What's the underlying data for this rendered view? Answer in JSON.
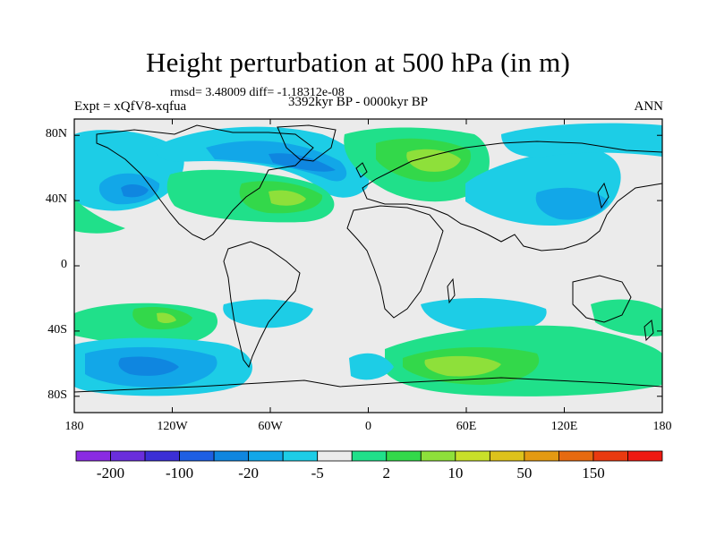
{
  "header": {
    "title": "Height perturbation at 500 hPa (in m)",
    "stats": "rmsd= 3.48009 diff= -1.18312e-08",
    "left_label": "Expt = xQfV8-xqfua",
    "center_label": "3392kyr BP - 0000kyr BP",
    "right_label": "ANN"
  },
  "map": {
    "projection": "cylindrical-equidistant",
    "lon_range": [
      -180,
      180
    ],
    "lat_range": [
      -90,
      90
    ],
    "lon_ticks": [
      {
        "value": -180,
        "label": "180"
      },
      {
        "value": -120,
        "label": "120W"
      },
      {
        "value": -60,
        "label": "60W"
      },
      {
        "value": 0,
        "label": "0"
      },
      {
        "value": 60,
        "label": "60E"
      },
      {
        "value": 120,
        "label": "120E"
      },
      {
        "value": 180,
        "label": "180"
      }
    ],
    "lat_ticks": [
      {
        "value": 80,
        "label": "80N"
      },
      {
        "value": 40,
        "label": "40N"
      },
      {
        "value": 0,
        "label": "0"
      },
      {
        "value": -40,
        "label": "40S"
      },
      {
        "value": -80,
        "label": "80S"
      }
    ]
  },
  "colorbar": {
    "colors": [
      "#8a2be2",
      "#6a2edc",
      "#3b2fd6",
      "#1e5fe3",
      "#0f86e0",
      "#12a7e8",
      "#1dcde6",
      "#ebebeb",
      "#20e08a",
      "#33d84a",
      "#8ee03a",
      "#c8e02a",
      "#ddc21c",
      "#e39a12",
      "#e66a10",
      "#ea3a10",
      "#ee1a12"
    ],
    "labels": [
      {
        "index": 1,
        "text": "-200"
      },
      {
        "index": 3,
        "text": "-100"
      },
      {
        "index": 5,
        "text": "-20"
      },
      {
        "index": 7,
        "text": "-5"
      },
      {
        "index": 9,
        "text": "2"
      },
      {
        "index": 11,
        "text": "10"
      },
      {
        "index": 13,
        "text": "50"
      },
      {
        "index": 15,
        "text": "150"
      }
    ]
  },
  "colors": {
    "neutral": "#ebebeb",
    "light_blue": "#1dcde6",
    "mid_blue": "#12a7e8",
    "blue": "#0f86e0",
    "dark_blue": "#1e5fe3",
    "light_green": "#20e08a",
    "green": "#33d84a",
    "yellow_green": "#8ee03a",
    "yellow": "#c8e02a"
  }
}
